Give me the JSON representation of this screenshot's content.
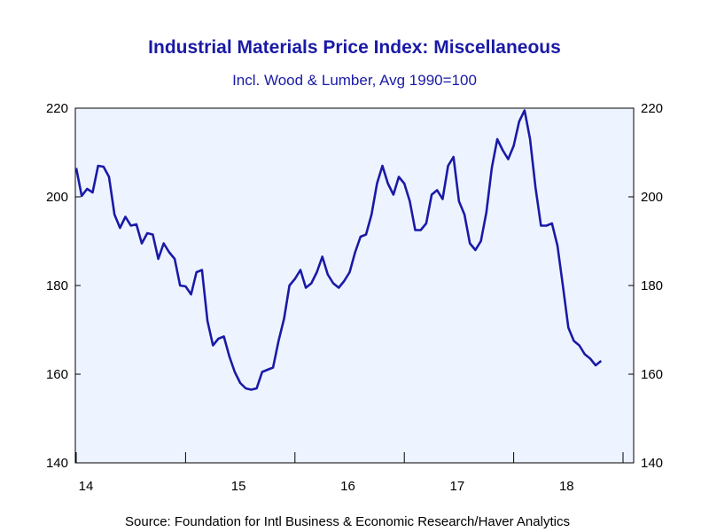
{
  "chart_data": {
    "type": "line",
    "title": "Industrial Materials Price Index: Miscellaneous",
    "subtitle": "Incl. Wood & Lumber, Avg 1990=100",
    "source": "Source:  Foundation for Intl Business & Economic Research/Haver Analytics",
    "xlabel": "",
    "ylabel": "",
    "ylim": [
      140,
      220
    ],
    "y_ticks": [
      "140",
      "160",
      "180",
      "200",
      "220"
    ],
    "x_range": [
      2014.0,
      2019.0
    ],
    "x_tick_labels": [
      {
        "label": "14",
        "pos": 2014.0
      },
      {
        "label": "15",
        "pos": 2015.0
      },
      {
        "label": "16",
        "pos": 2016.0
      },
      {
        "label": "17",
        "pos": 2017.0
      },
      {
        "label": "18",
        "pos": 2018.0
      }
    ],
    "grid": false,
    "colors": {
      "series": "#1a1aa6",
      "plot_bg": "#eef4ff",
      "axis": "#000000",
      "title": "#1a1aa6"
    },
    "series": [
      {
        "x": [
          2014.0,
          2014.05,
          2014.1,
          2014.15,
          2014.2,
          2014.25,
          2014.3,
          2014.35,
          2014.4,
          2014.45,
          2014.5,
          2014.55,
          2014.6,
          2014.65,
          2014.7,
          2014.75,
          2014.8,
          2014.85,
          2014.9,
          2014.95,
          2015.0,
          2015.05,
          2015.1,
          2015.15,
          2015.2,
          2015.25,
          2015.3,
          2015.35,
          2015.4,
          2015.45,
          2015.5,
          2015.55,
          2015.6,
          2015.65,
          2015.7,
          2015.75,
          2015.8,
          2015.85,
          2015.9,
          2015.95,
          2016.0,
          2016.05,
          2016.1,
          2016.15,
          2016.2,
          2016.25,
          2016.3,
          2016.35,
          2016.4,
          2016.45,
          2016.5,
          2016.55,
          2016.6,
          2016.65,
          2016.7,
          2016.75,
          2016.8,
          2016.85,
          2016.9,
          2016.95,
          2017.0,
          2017.05,
          2017.1,
          2017.15,
          2017.2,
          2017.25,
          2017.3,
          2017.35,
          2017.4,
          2017.45,
          2017.5,
          2017.55,
          2017.6,
          2017.65,
          2017.7,
          2017.75,
          2017.8,
          2017.85,
          2017.9,
          2017.95,
          2018.0,
          2018.05,
          2018.1,
          2018.15,
          2018.2,
          2018.25,
          2018.3,
          2018.35,
          2018.4,
          2018.45,
          2018.5,
          2018.55,
          2018.6,
          2018.65,
          2018.7,
          2018.75,
          2018.8
        ],
        "values": [
          206.5,
          200.2,
          201.8,
          201.0,
          207.0,
          206.8,
          204.5,
          196.0,
          193.0,
          195.5,
          193.5,
          193.8,
          189.5,
          191.8,
          191.5,
          186.0,
          189.5,
          187.5,
          186.0,
          180.0,
          179.8,
          178.0,
          183.0,
          183.5,
          172.0,
          166.5,
          168.0,
          168.5,
          164.0,
          160.5,
          158.0,
          156.8,
          156.5,
          156.8,
          160.5,
          161.0,
          161.5,
          167.5,
          172.5,
          180.0,
          181.5,
          183.5,
          179.5,
          180.5,
          183.0,
          186.5,
          182.5,
          180.5,
          179.5,
          181.0,
          183.0,
          187.5,
          191.0,
          191.5,
          196.0,
          203.0,
          207.0,
          203.0,
          200.5,
          204.5,
          203.0,
          199.0,
          192.5,
          192.5,
          194.0,
          200.5,
          201.5,
          199.5,
          207.0,
          209.0,
          199.0,
          196.0,
          189.5,
          188.0,
          190.0,
          196.5,
          206.5,
          213.0,
          210.5,
          208.5,
          211.5,
          217.0,
          219.5,
          213.0,
          202.0,
          193.5,
          193.5,
          194.0,
          189.0,
          180.0,
          170.5,
          167.5,
          166.5,
          164.5,
          163.5,
          162.0,
          163.0
        ]
      }
    ]
  }
}
